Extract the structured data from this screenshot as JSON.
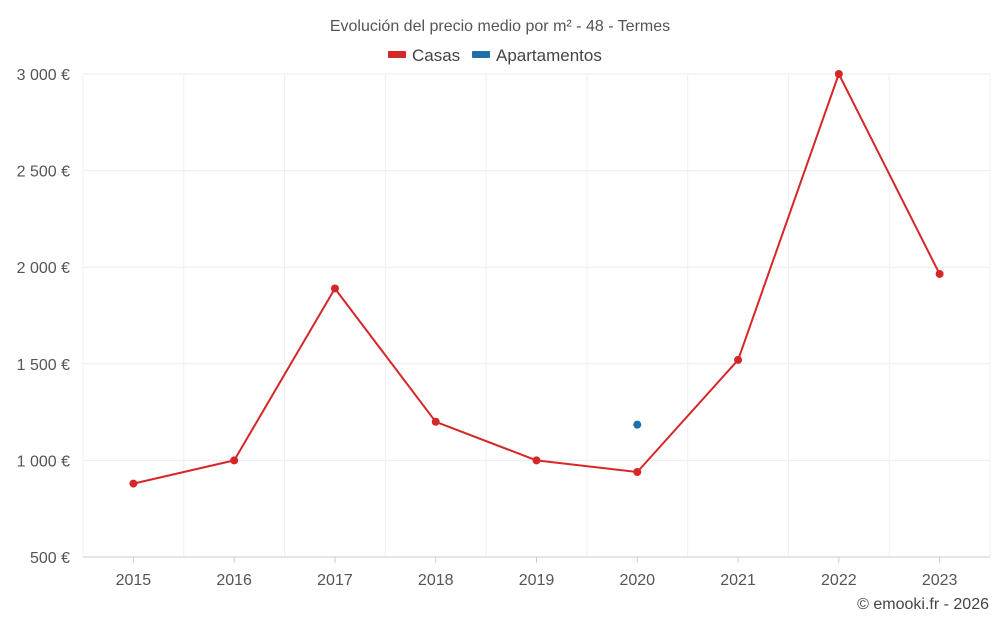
{
  "chart_data": {
    "type": "line",
    "title": "Evolución del precio medio por m² - 48 - Termes",
    "categories": [
      "2015",
      "2016",
      "2017",
      "2018",
      "2019",
      "2020",
      "2021",
      "2022",
      "2023"
    ],
    "series": [
      {
        "name": "Casas",
        "color": "#d62728",
        "values": [
          880,
          1000,
          1890,
          1200,
          1000,
          940,
          1520,
          3000,
          1965
        ]
      },
      {
        "name": "Apartamentos",
        "color": "#1f6fa8",
        "values": [
          null,
          null,
          null,
          null,
          null,
          1185,
          null,
          null,
          null
        ]
      }
    ],
    "ylim": [
      500,
      3000
    ],
    "yticks": [
      500,
      1000,
      1500,
      2000,
      2500,
      3000
    ],
    "ytick_labels": [
      "500 €",
      "1 000 €",
      "1 500 €",
      "2 000 €",
      "2 500 €",
      "3 000 €"
    ],
    "xlabel": "",
    "ylabel": "",
    "grid": true,
    "legend_position": "top-center",
    "credit": "© emooki.fr - 2026"
  }
}
